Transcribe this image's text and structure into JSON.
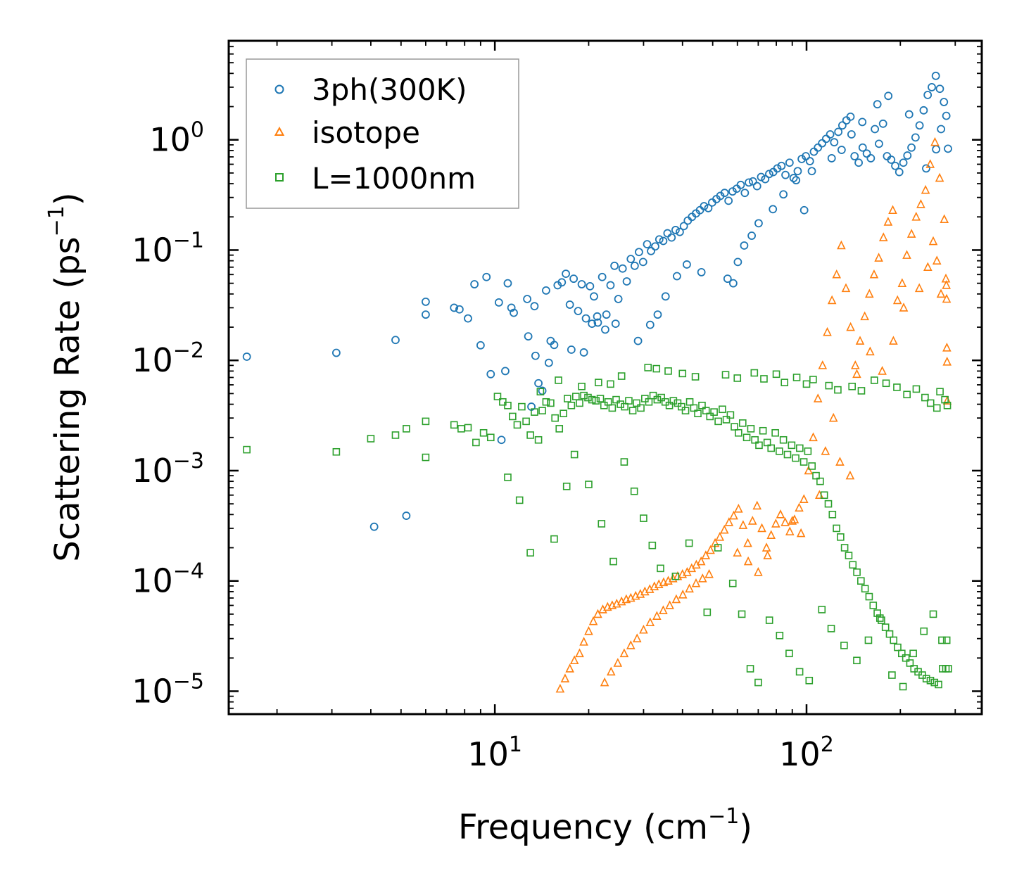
{
  "chart_data": {
    "type": "scatter",
    "title": "",
    "xlabel": {
      "text": "Frequency (cm",
      "sup": "−1",
      "end": ")"
    },
    "ylabel": {
      "text": "Scattering Rate (ps",
      "sup": "−1",
      "end": ")"
    },
    "xscale": "log",
    "yscale": "log",
    "xlim": [
      1.4,
      365
    ],
    "ylim": [
      6.2e-06,
      7.9
    ],
    "x_ticks": [
      {
        "value": 10,
        "base": "10",
        "exp": "1"
      },
      {
        "value": 100,
        "base": "10",
        "exp": "2"
      }
    ],
    "y_ticks": [
      {
        "value": 1,
        "base": "10",
        "exp": "0"
      },
      {
        "value": 0.1,
        "base": "10",
        "exp": "−1"
      },
      {
        "value": 0.01,
        "base": "10",
        "exp": "−2"
      },
      {
        "value": 0.001,
        "base": "10",
        "exp": "−3"
      },
      {
        "value": 0.0001,
        "base": "10",
        "exp": "−4"
      },
      {
        "value": 1e-05,
        "base": "10",
        "exp": "−5"
      }
    ],
    "legend_position": "top-left",
    "series": [
      {
        "name": "3ph(300K)",
        "marker": "circle",
        "color": "#1f77b4",
        "x": [
          1.6,
          3.1,
          4.8,
          4.1,
          5.2,
          6.0,
          6.0,
          7.4,
          7.7,
          8.2,
          8.6,
          9.0,
          9.4,
          9.7,
          10.3,
          10.5,
          10.8,
          11.0,
          11.3,
          11.5,
          12.7,
          13.1,
          13.4,
          13.8,
          14.2,
          14.6,
          15.1,
          15.5,
          15.9,
          16.4,
          16.9,
          17.4,
          17.9,
          18.5,
          19.0,
          19.6,
          20.2,
          20.8,
          21.4,
          22.1,
          22.8,
          23.5,
          24.2,
          24.9,
          25.7,
          26.5,
          27.3,
          28.1,
          29.0,
          29.9,
          30.8,
          31.7,
          32.7,
          33.7,
          34.7,
          35.8,
          36.9,
          38.0,
          39.2,
          40.4,
          41.6,
          42.9,
          44.2,
          45.5,
          46.9,
          48.4,
          49.8,
          51.4,
          52.9,
          54.6,
          56.2,
          57.9,
          59.7,
          61.5,
          63.4,
          65.3,
          67.3,
          69.4,
          71.5,
          73.7,
          75.9,
          78.2,
          80.6,
          83.1,
          85.6,
          88.2,
          90.9,
          93.7,
          96.5,
          99.5,
          102.5,
          105.6,
          108.8,
          112.2,
          115.6,
          119.1,
          122.7,
          126.5,
          130.3,
          134.3,
          138.4,
          142.6,
          147.0,
          151.4,
          156.1,
          160.8,
          165.7,
          170.8,
          176.0,
          181.3,
          186.9,
          192.6,
          198.4,
          204.5,
          210.7,
          217.1,
          223.7,
          230.5,
          237.6,
          244.8,
          252.3,
          259.9,
          267.8,
          276.0,
          284.4,
          12.8,
          13.5,
          14.9,
          17.6,
          19.3,
          20.5,
          21.3,
          22.6,
          24.4,
          28.8,
          31.5,
          33.3,
          35.3,
          38.4,
          41.3,
          46.0,
          55.8,
          58.2,
          60.2,
          63.1,
          66.7,
          70.2,
          78.0,
          84.3,
          92.6,
          98.3,
          104.0,
          120.4,
          129.6,
          139.4,
          151.0,
          168.8,
          183.0,
          213.4,
          242.0,
          260.5,
          270.2,
          280.9
        ],
        "y": [
          0.0108,
          0.0117,
          0.0153,
          0.00031,
          0.00039,
          0.034,
          0.026,
          0.03,
          0.029,
          0.024,
          0.049,
          0.0137,
          0.057,
          0.0075,
          0.0335,
          0.0019,
          0.008,
          0.05,
          0.03,
          0.027,
          0.036,
          0.0038,
          0.031,
          0.0062,
          0.0053,
          0.043,
          0.015,
          0.0138,
          0.048,
          0.051,
          0.061,
          0.032,
          0.055,
          0.028,
          0.049,
          0.024,
          0.047,
          0.038,
          0.022,
          0.057,
          0.026,
          0.048,
          0.072,
          0.036,
          0.068,
          0.052,
          0.083,
          0.072,
          0.096,
          0.078,
          0.113,
          0.098,
          0.108,
          0.125,
          0.121,
          0.142,
          0.13,
          0.152,
          0.146,
          0.165,
          0.185,
          0.2,
          0.215,
          0.23,
          0.25,
          0.24,
          0.27,
          0.29,
          0.31,
          0.33,
          0.28,
          0.34,
          0.36,
          0.39,
          0.33,
          0.41,
          0.42,
          0.38,
          0.46,
          0.44,
          0.49,
          0.51,
          0.55,
          0.58,
          0.48,
          0.62,
          0.45,
          0.52,
          0.67,
          0.71,
          0.64,
          0.78,
          0.85,
          0.93,
          1.02,
          1.12,
          0.95,
          1.18,
          1.35,
          1.5,
          1.62,
          0.71,
          0.62,
          0.85,
          0.75,
          0.68,
          1.25,
          0.92,
          1.4,
          0.71,
          0.66,
          0.58,
          0.51,
          0.62,
          0.72,
          0.85,
          1.05,
          1.35,
          1.85,
          2.55,
          3.0,
          3.8,
          2.9,
          2.2,
          0.83,
          0.0165,
          0.011,
          0.0095,
          0.0125,
          0.0118,
          0.0215,
          0.025,
          0.019,
          0.0215,
          0.015,
          0.021,
          0.026,
          0.038,
          0.058,
          0.074,
          0.063,
          0.055,
          0.05,
          0.078,
          0.11,
          0.135,
          0.175,
          0.235,
          0.32,
          0.43,
          0.23,
          0.52,
          0.68,
          0.81,
          1.12,
          1.45,
          2.1,
          2.5,
          1.7,
          0.55,
          0.82,
          1.25,
          1.65
        ]
      },
      {
        "name": "isotope",
        "marker": "triangle",
        "color": "#ff7f0e",
        "x": [
          16.2,
          16.8,
          17.4,
          18.0,
          18.7,
          19.3,
          20.0,
          20.7,
          21.4,
          22.2,
          23.0,
          23.8,
          24.6,
          25.5,
          26.4,
          27.3,
          28.3,
          29.3,
          30.3,
          31.4,
          32.5,
          33.6,
          34.8,
          36.0,
          37.3,
          38.6,
          40.0,
          41.4,
          42.8,
          44.3,
          45.9,
          47.5,
          49.2,
          50.9,
          52.7,
          54.5,
          56.4,
          58.4,
          60.5,
          62.6,
          64.8,
          67.1,
          69.4,
          71.9,
          74.4,
          77.0,
          79.7,
          82.5,
          85.4,
          88.4,
          91.5,
          94.7,
          98.1,
          101.5,
          105.1,
          108.8,
          112.6,
          116.6,
          120.7,
          124.9,
          129.3,
          133.8,
          138.5,
          143.4,
          148.5,
          153.7,
          159.1,
          164.7,
          170.5,
          176.5,
          182.7,
          189.1,
          195.8,
          202.7,
          209.8,
          217.2,
          224.8,
          232.7,
          240.9,
          249.4,
          258.2,
          267.3,
          276.7,
          280.0,
          281.0,
          281.5,
          282.0,
          282.5,
          282.8,
          22.5,
          23.6,
          24.8,
          26.0,
          27.3,
          28.6,
          30.0,
          31.5,
          33.1,
          34.7,
          36.4,
          38.2,
          40.1,
          42.1,
          44.2,
          46.4,
          48.7,
          60.0,
          65.0,
          70.0,
          75.0,
          90.0,
          96.0,
          110.0,
          115.0,
          122.0,
          128.0,
          138.0,
          145.0,
          160.0,
          175.0,
          190.0,
          205.0,
          230.0,
          245.0,
          255.0,
          262.0,
          270.0
        ],
        "y": [
          1.05e-05,
          1.3e-05,
          1.6e-05,
          1.9e-05,
          2.2e-05,
          2.8e-05,
          3.5e-05,
          4.3e-05,
          5e-05,
          5.5e-05,
          5.8e-05,
          6e-05,
          6.2e-05,
          6.5e-05,
          6.8e-05,
          7e-05,
          7.3e-05,
          7.6e-05,
          8e-05,
          8.4e-05,
          8.9e-05,
          9.3e-05,
          9.7e-05,
          0.0001,
          0.000105,
          0.00011,
          0.000115,
          0.00012,
          0.00013,
          0.00014,
          0.00015,
          0.00017,
          0.00019,
          0.00022,
          0.00025,
          0.00029,
          0.00034,
          0.00039,
          0.00045,
          0.00032,
          0.00022,
          0.00035,
          0.00048,
          0.0003,
          0.0002,
          0.00026,
          0.00033,
          0.0004,
          0.00034,
          0.00028,
          0.00036,
          0.00046,
          0.00055,
          0.001,
          0.002,
          0.0045,
          0.009,
          0.018,
          0.035,
          0.06,
          0.11,
          0.045,
          0.02,
          0.009,
          0.015,
          0.025,
          0.04,
          0.06,
          0.085,
          0.13,
          0.18,
          0.23,
          0.035,
          0.05,
          0.09,
          0.14,
          0.2,
          0.26,
          0.35,
          0.6,
          0.95,
          0.45,
          0.19,
          0.055,
          0.048,
          0.036,
          0.013,
          0.0097,
          0.0043,
          1.2e-05,
          1.5e-05,
          1.8e-05,
          2.2e-05,
          2.6e-05,
          3e-05,
          3.6e-05,
          4.2e-05,
          4.8e-05,
          5.4e-05,
          6e-05,
          6.8e-05,
          7.5e-05,
          8.5e-05,
          9.5e-05,
          0.000105,
          0.000115,
          0.00018,
          0.00015,
          0.00012,
          0.00017,
          0.00035,
          0.00027,
          0.0006,
          0.0015,
          0.003,
          0.0012,
          0.0009,
          0.0075,
          0.012,
          0.008,
          0.015,
          0.03,
          0.045,
          0.07,
          0.12,
          0.08,
          0.04
        ]
      },
      {
        "name": "L=1000nm",
        "marker": "square",
        "color": "#2ca02c",
        "x": [
          1.6,
          3.1,
          4.0,
          4.8,
          5.2,
          6.0,
          6.0,
          7.4,
          7.8,
          8.2,
          8.7,
          9.2,
          9.7,
          10.2,
          10.6,
          11.0,
          11.4,
          11.8,
          12.2,
          12.6,
          13.0,
          13.4,
          13.8,
          14.2,
          14.6,
          15.1,
          15.6,
          16.1,
          16.6,
          17.1,
          17.6,
          18.2,
          18.7,
          19.3,
          19.9,
          20.5,
          21.1,
          21.8,
          22.4,
          23.1,
          23.8,
          24.5,
          25.3,
          26.1,
          26.9,
          27.7,
          28.5,
          29.4,
          30.3,
          31.2,
          32.2,
          33.2,
          34.2,
          35.2,
          36.3,
          37.4,
          38.6,
          39.7,
          40.9,
          42.2,
          43.5,
          44.8,
          46.2,
          47.6,
          49.0,
          50.5,
          52.1,
          53.7,
          55.3,
          57.0,
          58.7,
          60.5,
          62.4,
          64.3,
          66.3,
          68.3,
          70.4,
          72.5,
          74.8,
          77.0,
          79.4,
          81.8,
          84.3,
          86.9,
          89.6,
          92.3,
          95.1,
          98.0,
          101.0,
          104.1,
          107.3,
          110.6,
          114.0,
          117.5,
          121.1,
          124.8,
          128.6,
          132.5,
          136.6,
          140.8,
          145.1,
          149.5,
          154.1,
          158.8,
          163.7,
          168.7,
          173.9,
          179.2,
          184.7,
          190.3,
          196.1,
          202.1,
          208.3,
          214.7,
          221.3,
          228.1,
          235.1,
          242.3,
          249.7,
          257.3,
          265.2,
          273.3,
          281.7,
          285.0,
          11.0,
          12.0,
          13.0,
          15.5,
          17.0,
          18.0,
          20.0,
          22.0,
          24.0,
          26.0,
          28.0,
          30.0,
          32.0,
          34.0,
          38.0,
          42.0,
          48.0,
          52.0,
          58.0,
          62.0,
          66.0,
          70.0,
          76.0,
          82.0,
          88.0,
          95.0,
          102.0,
          112.0,
          120.0,
          132.0,
          145.0,
          158.0,
          172.0,
          188.0,
          204.0,
          220.0,
          238.0,
          255.0,
          272.0,
          280.0,
          14.0,
          16.0,
          19.0,
          21.5,
          23.5,
          25.5,
          31.0,
          33.0,
          36.0,
          40.0,
          44.0,
          55.0,
          60.0,
          68.0,
          73.0,
          80.0,
          85.0,
          93.0,
          100.0,
          105.0,
          118.0,
          126.0,
          140.0,
          150.0,
          165.0,
          180.0,
          195.0,
          210.0,
          225.0,
          240.0,
          250.0,
          262.0,
          268.0,
          278.0,
          283.0
        ],
        "y": [
          0.00155,
          0.00148,
          0.00195,
          0.0021,
          0.0024,
          0.0028,
          0.00132,
          0.0026,
          0.0024,
          0.00245,
          0.0018,
          0.0022,
          0.002,
          0.0047,
          0.0042,
          0.0039,
          0.0031,
          0.0026,
          0.0038,
          0.0028,
          0.0021,
          0.0034,
          0.0019,
          0.0035,
          0.0042,
          0.0041,
          0.003,
          0.0024,
          0.0033,
          0.0045,
          0.0039,
          0.0047,
          0.0041,
          0.0048,
          0.0046,
          0.0044,
          0.0043,
          0.0045,
          0.0039,
          0.0042,
          0.0037,
          0.0044,
          0.004,
          0.0038,
          0.0043,
          0.0035,
          0.0041,
          0.0037,
          0.0045,
          0.0042,
          0.0048,
          0.0044,
          0.0046,
          0.0042,
          0.0039,
          0.0043,
          0.0041,
          0.0038,
          0.0035,
          0.0042,
          0.0037,
          0.0033,
          0.0039,
          0.0035,
          0.0031,
          0.0034,
          0.0028,
          0.0036,
          0.0029,
          0.0032,
          0.0025,
          0.0022,
          0.0027,
          0.002,
          0.0024,
          0.0019,
          0.0017,
          0.0023,
          0.0018,
          0.0016,
          0.0022,
          0.0015,
          0.0019,
          0.0014,
          0.0017,
          0.0013,
          0.0016,
          0.0012,
          0.0015,
          0.0011,
          0.0009,
          0.0008,
          0.0006,
          0.0005,
          0.0004,
          0.0003,
          0.00025,
          0.0002,
          0.00017,
          0.00014,
          0.00012,
          0.0001,
          8.5e-05,
          7.2e-05,
          6e-05,
          5.1e-05,
          4.4e-05,
          3.8e-05,
          3.3e-05,
          2.9e-05,
          2.5e-05,
          2.2e-05,
          2e-05,
          1.8e-05,
          1.6e-05,
          1.5e-05,
          1.4e-05,
          1.3e-05,
          1.25e-05,
          1.2e-05,
          1.15e-05,
          1.6e-05,
          2.9e-05,
          1.6e-05,
          0.00087,
          0.00054,
          0.00018,
          0.00024,
          0.00072,
          0.0014,
          0.00075,
          0.00033,
          0.00015,
          0.0012,
          0.00065,
          0.00037,
          0.00021,
          0.00013,
          0.00011,
          0.00022,
          5.2e-05,
          0.0002,
          9.5e-05,
          5e-05,
          1.6e-05,
          1.2e-05,
          4.4e-05,
          3.2e-05,
          2.2e-05,
          1.5e-05,
          1.25e-05,
          5.5e-05,
          3.7e-05,
          2.6e-05,
          1.9e-05,
          2.9e-05,
          4.6e-05,
          1.4e-05,
          1.1e-05,
          2.2e-05,
          3.5e-05,
          5e-05,
          2.9e-05,
          1.6e-05,
          0.0052,
          0.0066,
          0.0058,
          0.0063,
          0.0061,
          0.0072,
          0.0086,
          0.0084,
          0.008,
          0.0076,
          0.0071,
          0.0074,
          0.0069,
          0.0077,
          0.0068,
          0.0075,
          0.0063,
          0.007,
          0.0061,
          0.0067,
          0.0059,
          0.0054,
          0.0058,
          0.0053,
          0.0066,
          0.0062,
          0.0057,
          0.0049,
          0.0055,
          0.0046,
          0.0041,
          0.0037,
          0.0052,
          0.0044,
          0.0039
        ]
      }
    ]
  }
}
